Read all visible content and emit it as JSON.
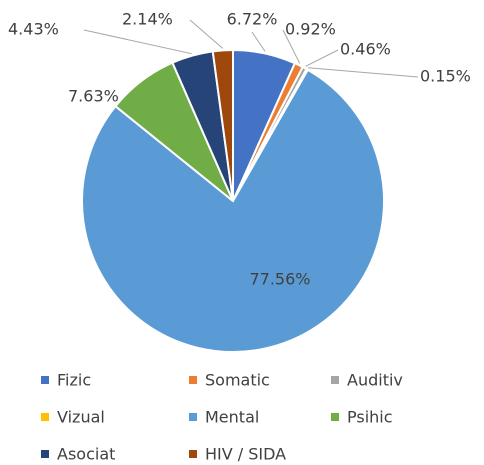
{
  "chart_data": {
    "type": "pie",
    "categories": [
      "Fizic",
      "Somatic",
      "Auditiv",
      "Vizual",
      "Mental",
      "Psihic",
      "Asociat",
      "HIV / SIDA"
    ],
    "values": [
      6.72,
      0.92,
      0.46,
      0.15,
      77.56,
      7.63,
      4.43,
      2.14
    ],
    "value_labels": [
      "6.72%",
      "0.92%",
      "0.46%",
      "0.15%",
      "77.56%",
      "7.63%",
      "4.43%",
      "2.14%"
    ],
    "colors": [
      "#4472c4",
      "#ed7d31",
      "#a5a5a5",
      "#ffc000",
      "#5b9bd5",
      "#70ad47",
      "#264478",
      "#9e480e"
    ],
    "legend": "bottom"
  }
}
